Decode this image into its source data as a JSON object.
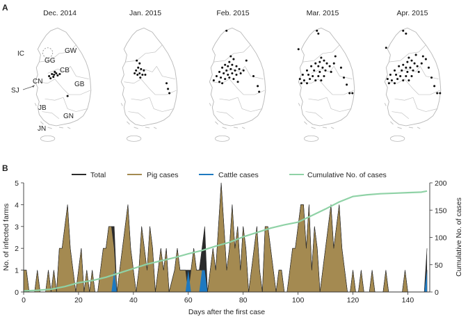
{
  "panelA": {
    "label": "A",
    "maps": [
      {
        "title": "Dec. 2014"
      },
      {
        "title": "Jan. 2015"
      },
      {
        "title": "Feb. 2015"
      },
      {
        "title": "Mar. 2015"
      },
      {
        "title": "Apr. 2015"
      }
    ],
    "regions": [
      "IC",
      "GW",
      "GG",
      "CB",
      "CN",
      "SJ",
      "GB",
      "JB",
      "GN",
      "JN"
    ]
  },
  "chart_data": {
    "panel_label": "B",
    "type": "area",
    "xlabel": "Days after the first case",
    "ylabel": "No. of infected farms",
    "ylabel_right": "Cumulative No. of cases",
    "xlim": [
      0,
      148
    ],
    "ylim": [
      0,
      5
    ],
    "ylim_right": [
      0,
      200
    ],
    "xticks": [
      "0",
      "20",
      "40",
      "60",
      "80",
      "100",
      "120",
      "140"
    ],
    "yticks": [
      "0",
      "1",
      "2",
      "3",
      "4",
      "5"
    ],
    "yticks_right": [
      "0",
      "50",
      "100",
      "150",
      "200"
    ],
    "legend": [
      "Total",
      "Pig cases",
      "Cattle cases",
      "Cumulative No. of cases"
    ],
    "colors": {
      "total": "#2b2b2b",
      "pig": "#a48a51",
      "cattle": "#1e79c0",
      "cumulative": "#8fd2a6"
    },
    "series": [
      {
        "name": "Pig cases",
        "points": [
          [
            0,
            1
          ],
          [
            1,
            1
          ],
          [
            2,
            0
          ],
          [
            4,
            0
          ],
          [
            5,
            1
          ],
          [
            6,
            0
          ],
          [
            8,
            0
          ],
          [
            9,
            1
          ],
          [
            10,
            0
          ],
          [
            11,
            1
          ],
          [
            12,
            0
          ],
          [
            13,
            2
          ],
          [
            14,
            2
          ],
          [
            15,
            3
          ],
          [
            16,
            4
          ],
          [
            17,
            2
          ],
          [
            18,
            1
          ],
          [
            19,
            0
          ],
          [
            20,
            1
          ],
          [
            21,
            2
          ],
          [
            22,
            0
          ],
          [
            23,
            1
          ],
          [
            24,
            0
          ],
          [
            25,
            1
          ],
          [
            26,
            0
          ],
          [
            27,
            0
          ],
          [
            28,
            1
          ],
          [
            29,
            2
          ],
          [
            30,
            2
          ],
          [
            31,
            3
          ],
          [
            32,
            3
          ],
          [
            33,
            2
          ],
          [
            34,
            0
          ],
          [
            35,
            1
          ],
          [
            36,
            2
          ],
          [
            37,
            3
          ],
          [
            38,
            4
          ],
          [
            39,
            2
          ],
          [
            40,
            1
          ],
          [
            41,
            0
          ],
          [
            42,
            1
          ],
          [
            43,
            3
          ],
          [
            44,
            2
          ],
          [
            45,
            1
          ],
          [
            46,
            3
          ],
          [
            47,
            2
          ],
          [
            48,
            0
          ],
          [
            50,
            2
          ],
          [
            51,
            1
          ],
          [
            52,
            2
          ],
          [
            53,
            0
          ],
          [
            55,
            1
          ],
          [
            56,
            2
          ],
          [
            57,
            1
          ],
          [
            58,
            1
          ],
          [
            59,
            1
          ],
          [
            60,
            0
          ],
          [
            61,
            1
          ],
          [
            62,
            2
          ],
          [
            63,
            1
          ],
          [
            64,
            1
          ],
          [
            65,
            1
          ],
          [
            66,
            0
          ],
          [
            67,
            0
          ],
          [
            68,
            1
          ],
          [
            69,
            2
          ],
          [
            70,
            1
          ],
          [
            71,
            3
          ],
          [
            72,
            5
          ],
          [
            73,
            3
          ],
          [
            74,
            1
          ],
          [
            75,
            2
          ],
          [
            76,
            4
          ],
          [
            77,
            2
          ],
          [
            78,
            3
          ],
          [
            79,
            1
          ],
          [
            80,
            3
          ],
          [
            81,
            2
          ],
          [
            82,
            0
          ],
          [
            83,
            1
          ],
          [
            84,
            2
          ],
          [
            85,
            3
          ],
          [
            86,
            1
          ],
          [
            87,
            0
          ],
          [
            88,
            3
          ],
          [
            89,
            3
          ],
          [
            90,
            2
          ],
          [
            91,
            1
          ],
          [
            92,
            0
          ],
          [
            93,
            1
          ],
          [
            94,
            1
          ],
          [
            95,
            0
          ],
          [
            96,
            0
          ],
          [
            97,
            1
          ],
          [
            98,
            2
          ],
          [
            99,
            2
          ],
          [
            100,
            3
          ],
          [
            101,
            4
          ],
          [
            102,
            4
          ],
          [
            103,
            2
          ],
          [
            104,
            4
          ],
          [
            105,
            1
          ],
          [
            106,
            3
          ],
          [
            107,
            2
          ],
          [
            108,
            0
          ],
          [
            110,
            2
          ],
          [
            111,
            3
          ],
          [
            112,
            4
          ],
          [
            113,
            2
          ],
          [
            114,
            3
          ],
          [
            115,
            4
          ],
          [
            116,
            2
          ],
          [
            117,
            1
          ],
          [
            118,
            0
          ],
          [
            119,
            0
          ],
          [
            120,
            1
          ],
          [
            121,
            0
          ],
          [
            122,
            0
          ],
          [
            123,
            1
          ],
          [
            124,
            0
          ],
          [
            125,
            0
          ],
          [
            126,
            0
          ],
          [
            127,
            1
          ],
          [
            128,
            0
          ],
          [
            129,
            0
          ],
          [
            130,
            0
          ],
          [
            131,
            0
          ],
          [
            132,
            1
          ],
          [
            133,
            0
          ],
          [
            138,
            0
          ],
          [
            139,
            1
          ],
          [
            140,
            0
          ],
          [
            146,
            0
          ],
          [
            147,
            1
          ]
        ]
      },
      {
        "name": "Cattle cases",
        "points": [
          [
            0,
            0
          ],
          [
            32,
            0
          ],
          [
            33,
            1
          ],
          [
            34,
            0
          ],
          [
            59,
            0
          ],
          [
            60,
            1
          ],
          [
            61,
            0
          ],
          [
            64,
            0
          ],
          [
            65,
            1
          ],
          [
            66,
            1
          ],
          [
            67,
            0
          ],
          [
            146,
            0
          ],
          [
            147,
            1
          ]
        ]
      },
      {
        "name": "Total",
        "points": [
          [
            0,
            1
          ],
          [
            1,
            1
          ],
          [
            2,
            0
          ],
          [
            4,
            0
          ],
          [
            5,
            1
          ],
          [
            6,
            0
          ],
          [
            8,
            0
          ],
          [
            9,
            1
          ],
          [
            10,
            0
          ],
          [
            11,
            1
          ],
          [
            12,
            0
          ],
          [
            13,
            2
          ],
          [
            14,
            2
          ],
          [
            15,
            3
          ],
          [
            16,
            4
          ],
          [
            17,
            2
          ],
          [
            18,
            1
          ],
          [
            19,
            0
          ],
          [
            20,
            1
          ],
          [
            21,
            2
          ],
          [
            22,
            0
          ],
          [
            23,
            1
          ],
          [
            24,
            0
          ],
          [
            25,
            1
          ],
          [
            26,
            0
          ],
          [
            27,
            0
          ],
          [
            28,
            1
          ],
          [
            29,
            2
          ],
          [
            30,
            2
          ],
          [
            31,
            3
          ],
          [
            32,
            3
          ],
          [
            33,
            3
          ],
          [
            34,
            0
          ],
          [
            35,
            1
          ],
          [
            36,
            2
          ],
          [
            37,
            3
          ],
          [
            38,
            4
          ],
          [
            39,
            2
          ],
          [
            40,
            1
          ],
          [
            41,
            0
          ],
          [
            42,
            1
          ],
          [
            43,
            3
          ],
          [
            44,
            2
          ],
          [
            45,
            1
          ],
          [
            46,
            3
          ],
          [
            47,
            2
          ],
          [
            48,
            0
          ],
          [
            50,
            2
          ],
          [
            51,
            1
          ],
          [
            52,
            2
          ],
          [
            53,
            0
          ],
          [
            55,
            1
          ],
          [
            56,
            2
          ],
          [
            57,
            1
          ],
          [
            58,
            1
          ],
          [
            59,
            1
          ],
          [
            60,
            1
          ],
          [
            61,
            1
          ],
          [
            62,
            2
          ],
          [
            63,
            1
          ],
          [
            64,
            1
          ],
          [
            65,
            2
          ],
          [
            66,
            3
          ],
          [
            67,
            0
          ],
          [
            68,
            1
          ],
          [
            69,
            2
          ],
          [
            70,
            1
          ],
          [
            71,
            3
          ],
          [
            72,
            5
          ],
          [
            73,
            3
          ],
          [
            74,
            1
          ],
          [
            75,
            2
          ],
          [
            76,
            4
          ],
          [
            77,
            2
          ],
          [
            78,
            3
          ],
          [
            79,
            1
          ],
          [
            80,
            3
          ],
          [
            81,
            2
          ],
          [
            82,
            0
          ],
          [
            83,
            1
          ],
          [
            84,
            2
          ],
          [
            85,
            3
          ],
          [
            86,
            1
          ],
          [
            87,
            0
          ],
          [
            88,
            3
          ],
          [
            89,
            3
          ],
          [
            90,
            2
          ],
          [
            91,
            1
          ],
          [
            92,
            0
          ],
          [
            93,
            1
          ],
          [
            94,
            1
          ],
          [
            95,
            0
          ],
          [
            96,
            0
          ],
          [
            97,
            1
          ],
          [
            98,
            2
          ],
          [
            99,
            2
          ],
          [
            100,
            3
          ],
          [
            101,
            4
          ],
          [
            102,
            4
          ],
          [
            103,
            2
          ],
          [
            104,
            4
          ],
          [
            105,
            1
          ],
          [
            106,
            3
          ],
          [
            107,
            2
          ],
          [
            108,
            0
          ],
          [
            110,
            2
          ],
          [
            111,
            3
          ],
          [
            112,
            4
          ],
          [
            113,
            2
          ],
          [
            114,
            3
          ],
          [
            115,
            4
          ],
          [
            116,
            2
          ],
          [
            117,
            1
          ],
          [
            118,
            0
          ],
          [
            119,
            0
          ],
          [
            120,
            1
          ],
          [
            121,
            0
          ],
          [
            122,
            0
          ],
          [
            123,
            1
          ],
          [
            124,
            0
          ],
          [
            125,
            0
          ],
          [
            126,
            0
          ],
          [
            127,
            1
          ],
          [
            128,
            0
          ],
          [
            129,
            0
          ],
          [
            130,
            0
          ],
          [
            131,
            0
          ],
          [
            132,
            1
          ],
          [
            133,
            0
          ],
          [
            138,
            0
          ],
          [
            139,
            1
          ],
          [
            140,
            0
          ],
          [
            146,
            0
          ],
          [
            147,
            2
          ]
        ]
      },
      {
        "name": "Cumulative No. of cases",
        "axis": "right",
        "points": [
          [
            0,
            2
          ],
          [
            5,
            3
          ],
          [
            10,
            5
          ],
          [
            15,
            10
          ],
          [
            20,
            17
          ],
          [
            25,
            21
          ],
          [
            30,
            27
          ],
          [
            35,
            35
          ],
          [
            40,
            43
          ],
          [
            45,
            51
          ],
          [
            50,
            57
          ],
          [
            55,
            63
          ],
          [
            60,
            70
          ],
          [
            65,
            76
          ],
          [
            70,
            84
          ],
          [
            75,
            91
          ],
          [
            80,
            101
          ],
          [
            85,
            109
          ],
          [
            90,
            117
          ],
          [
            95,
            123
          ],
          [
            100,
            128
          ],
          [
            105,
            140
          ],
          [
            110,
            152
          ],
          [
            115,
            165
          ],
          [
            120,
            175
          ],
          [
            125,
            178
          ],
          [
            130,
            180
          ],
          [
            135,
            181
          ],
          [
            140,
            182
          ],
          [
            145,
            183
          ],
          [
            147,
            185
          ]
        ]
      }
    ]
  }
}
